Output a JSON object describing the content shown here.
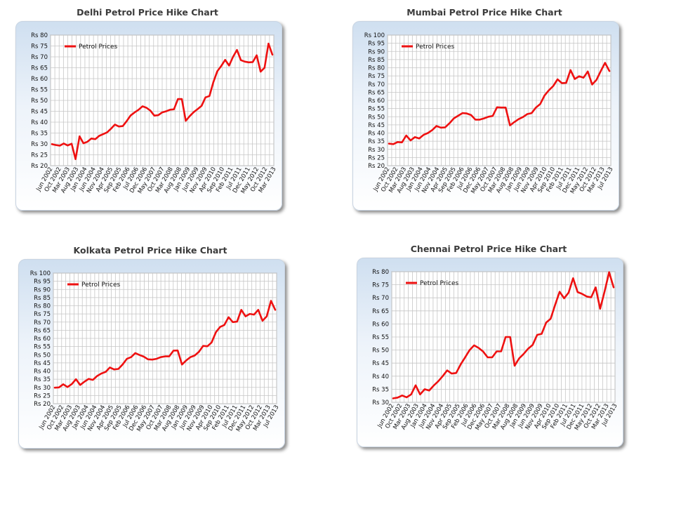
{
  "chart_data": [
    {
      "type": "line",
      "title": "Delhi Petrol Price Hike Chart",
      "ylim": [
        20,
        80
      ],
      "yticks": [
        "Rs 20",
        "Rs 25",
        "Rs 30",
        "Rs 35",
        "Rs 40",
        "Rs 45",
        "Rs 50",
        "Rs 55",
        "Rs 60",
        "Rs 65",
        "Rs 70",
        "Rs 75",
        "Rs 80"
      ],
      "xticks": [
        "Jun 2002",
        "Oct 2002",
        "Mar 2003",
        "Aug 2003",
        "Jan 2004",
        "Jun 2004",
        "Nov 2004",
        "Apr 2005",
        "Sep 2005",
        "Feb 2006",
        "Jul 2006",
        "Dec 2006",
        "May 2007",
        "Oct 2007",
        "Mar 2008",
        "Aug 2008",
        "Jan 2009",
        "Jun 2009",
        "Nov 2009",
        "Apr 2010",
        "Sep 2010",
        "Feb 2011",
        "Jul 2011",
        "Dec 2011",
        "May 2012",
        "Oct 2012",
        "Mar 2013"
      ],
      "legend": "top-left",
      "series": [
        {
          "name": "Petrol Prices",
          "values": [
            29.9,
            29.5,
            29.2,
            30.2,
            29.3,
            30.1,
            23.0,
            33.5,
            30.3,
            31.0,
            32.5,
            32.2,
            33.7,
            34.5,
            35.3,
            37.0,
            38.9,
            38.0,
            38.2,
            40.5,
            43.1,
            44.5,
            45.7,
            47.3,
            46.6,
            45.3,
            43.0,
            43.2,
            44.5,
            45.0,
            45.7,
            45.9,
            50.6,
            50.6,
            40.6,
            42.8,
            44.6,
            46.0,
            47.5,
            51.4,
            52.0,
            58.4,
            63.4,
            65.8,
            68.6,
            66.0,
            70.0,
            73.2,
            68.5,
            67.8,
            67.5,
            67.6,
            70.7,
            63.2,
            65.0,
            76.1,
            71.0
          ]
        }
      ]
    },
    {
      "type": "line",
      "title": "Mumbai Petrol Price Hike Chart",
      "ylim": [
        20,
        100
      ],
      "yticks": [
        "Rs 20",
        "Rs 25",
        "Rs 30",
        "Rs 35",
        "Rs 40",
        "Rs 45",
        "Rs 50",
        "Rs 55",
        "Rs 60",
        "Rs 65",
        "Rs 70",
        "Rs 75",
        "Rs 80",
        "Rs 85",
        "Rs 90",
        "Rs 95",
        "Rs 100"
      ],
      "xticks": [
        "Jun 2002",
        "Oct 2002",
        "Mar 2003",
        "Aug 2003",
        "Jan 2004",
        "Jun 2004",
        "Nov 2004",
        "Apr 2005",
        "Sep 2005",
        "Feb 2006",
        "Jul 2006",
        "Dec 2006",
        "May 2007",
        "Oct 2007",
        "Mar 2008",
        "Aug 2008",
        "Jan 2009",
        "Jun 2009",
        "Nov 2009",
        "Apr 2010",
        "Sep 2010",
        "Feb 2011",
        "Jul 2011",
        "Dec 2011",
        "May 2012",
        "Oct 2012",
        "Mar 2013",
        "Jul 2013"
      ],
      "legend": "top-left",
      "series": [
        {
          "name": "Petrol Prices",
          "values": [
            33.5,
            33.2,
            34.5,
            34.3,
            38.5,
            35.5,
            37.5,
            36.7,
            38.9,
            40.0,
            41.8,
            44.3,
            43.3,
            43.5,
            46.0,
            49.0,
            50.6,
            52.2,
            52.0,
            51.0,
            48.2,
            48.2,
            49.0,
            50.0,
            50.5,
            55.8,
            55.6,
            55.6,
            44.7,
            46.7,
            48.5,
            49.8,
            51.6,
            52.2,
            55.6,
            57.8,
            63.0,
            66.2,
            68.8,
            72.9,
            70.6,
            70.7,
            78.6,
            73.1,
            74.8,
            73.9,
            77.7,
            69.7,
            72.5,
            78.0,
            83.0,
            78.0
          ]
        }
      ]
    },
    {
      "type": "line",
      "title": "Kolkata Petrol Price Hike Chart",
      "ylim": [
        20,
        100
      ],
      "yticks": [
        "Rs 20",
        "Rs 25",
        "Rs 30",
        "Rs 35",
        "Rs 40",
        "Rs 45",
        "Rs 50",
        "Rs 55",
        "Rs 60",
        "Rs 65",
        "Rs 70",
        "Rs 75",
        "Rs 80",
        "Rs 85",
        "Rs 90",
        "Rs 95",
        "Rs 100"
      ],
      "xticks": [
        "Jun 2002",
        "Oct 2002",
        "Mar 2003",
        "Aug 2003",
        "Jan 2004",
        "Jun 2004",
        "Nov 2004",
        "Apr 2005",
        "Sep 2005",
        "Feb 2006",
        "Jul 2006",
        "Dec 2006",
        "May 2007",
        "Oct 2007",
        "Mar 2008",
        "Aug 2008",
        "Jan 2009",
        "Jun 2009",
        "Nov 2009",
        "Apr 2010",
        "Sep 2010",
        "Feb 2011",
        "Jul 2011",
        "Dec 2011",
        "May 2012",
        "Oct 2012",
        "Mar 2013",
        "Jul 2013"
      ],
      "legend": "top-left",
      "series": [
        {
          "name": "Petrol Prices",
          "values": [
            29.8,
            30.0,
            31.9,
            30.2,
            32.0,
            35.0,
            31.5,
            33.5,
            35.2,
            34.6,
            37.0,
            38.5,
            39.5,
            42.2,
            41.0,
            41.3,
            44.0,
            47.5,
            48.5,
            51.0,
            49.8,
            48.8,
            47.2,
            47.0,
            47.5,
            48.5,
            49.0,
            49.0,
            52.5,
            52.6,
            44.0,
            46.5,
            48.5,
            49.5,
            51.8,
            55.4,
            55.2,
            57.5,
            63.8,
            67.0,
            68.2,
            73.0,
            70.0,
            70.3,
            77.5,
            73.5,
            75.0,
            74.6,
            77.5,
            70.8,
            73.5,
            83.0,
            77.5
          ]
        }
      ]
    },
    {
      "type": "line",
      "title": "Chennai Petrol Price Hike Chart",
      "ylim": [
        30,
        80
      ],
      "yticks": [
        "Rs 30",
        "Rs 35",
        "Rs 40",
        "Rs 45",
        "Rs 50",
        "Rs 55",
        "Rs 60",
        "Rs 65",
        "Rs 70",
        "Rs 75",
        "Rs 80"
      ],
      "xticks": [
        "Jun 2002",
        "Oct 2002",
        "Mar 2003",
        "Aug 2003",
        "Jan 2004",
        "Jun 2004",
        "Nov 2004",
        "Apr 2005",
        "Sep 2005",
        "Feb 2006",
        "Jul 2006",
        "Dec 2006",
        "May 2007",
        "Oct 2007",
        "Mar 2008",
        "Aug 2008",
        "Jan 2009",
        "Jun 2009",
        "Nov 2009",
        "Apr 2010",
        "Sep 2010",
        "Feb 2011",
        "Jul 2011",
        "Dec 2011",
        "May 2012",
        "Oct 2012",
        "Mar 2013",
        "Jul 2013"
      ],
      "legend": "top-left",
      "series": [
        {
          "name": "Petrol Prices",
          "values": [
            31.5,
            31.8,
            32.6,
            31.9,
            33.0,
            36.5,
            33.0,
            35.0,
            34.5,
            36.4,
            38.0,
            40.0,
            42.2,
            41.0,
            41.2,
            44.5,
            47.2,
            50.0,
            51.8,
            50.8,
            49.4,
            47.2,
            47.2,
            49.5,
            49.5,
            55.0,
            55.0,
            44.0,
            46.8,
            48.5,
            50.5,
            52.0,
            55.8,
            56.2,
            60.5,
            62.0,
            67.3,
            72.3,
            69.8,
            72.0,
            77.5,
            72.2,
            71.5,
            70.5,
            70.2,
            74.0,
            65.8,
            72.5,
            79.8,
            74.0
          ]
        }
      ]
    }
  ]
}
